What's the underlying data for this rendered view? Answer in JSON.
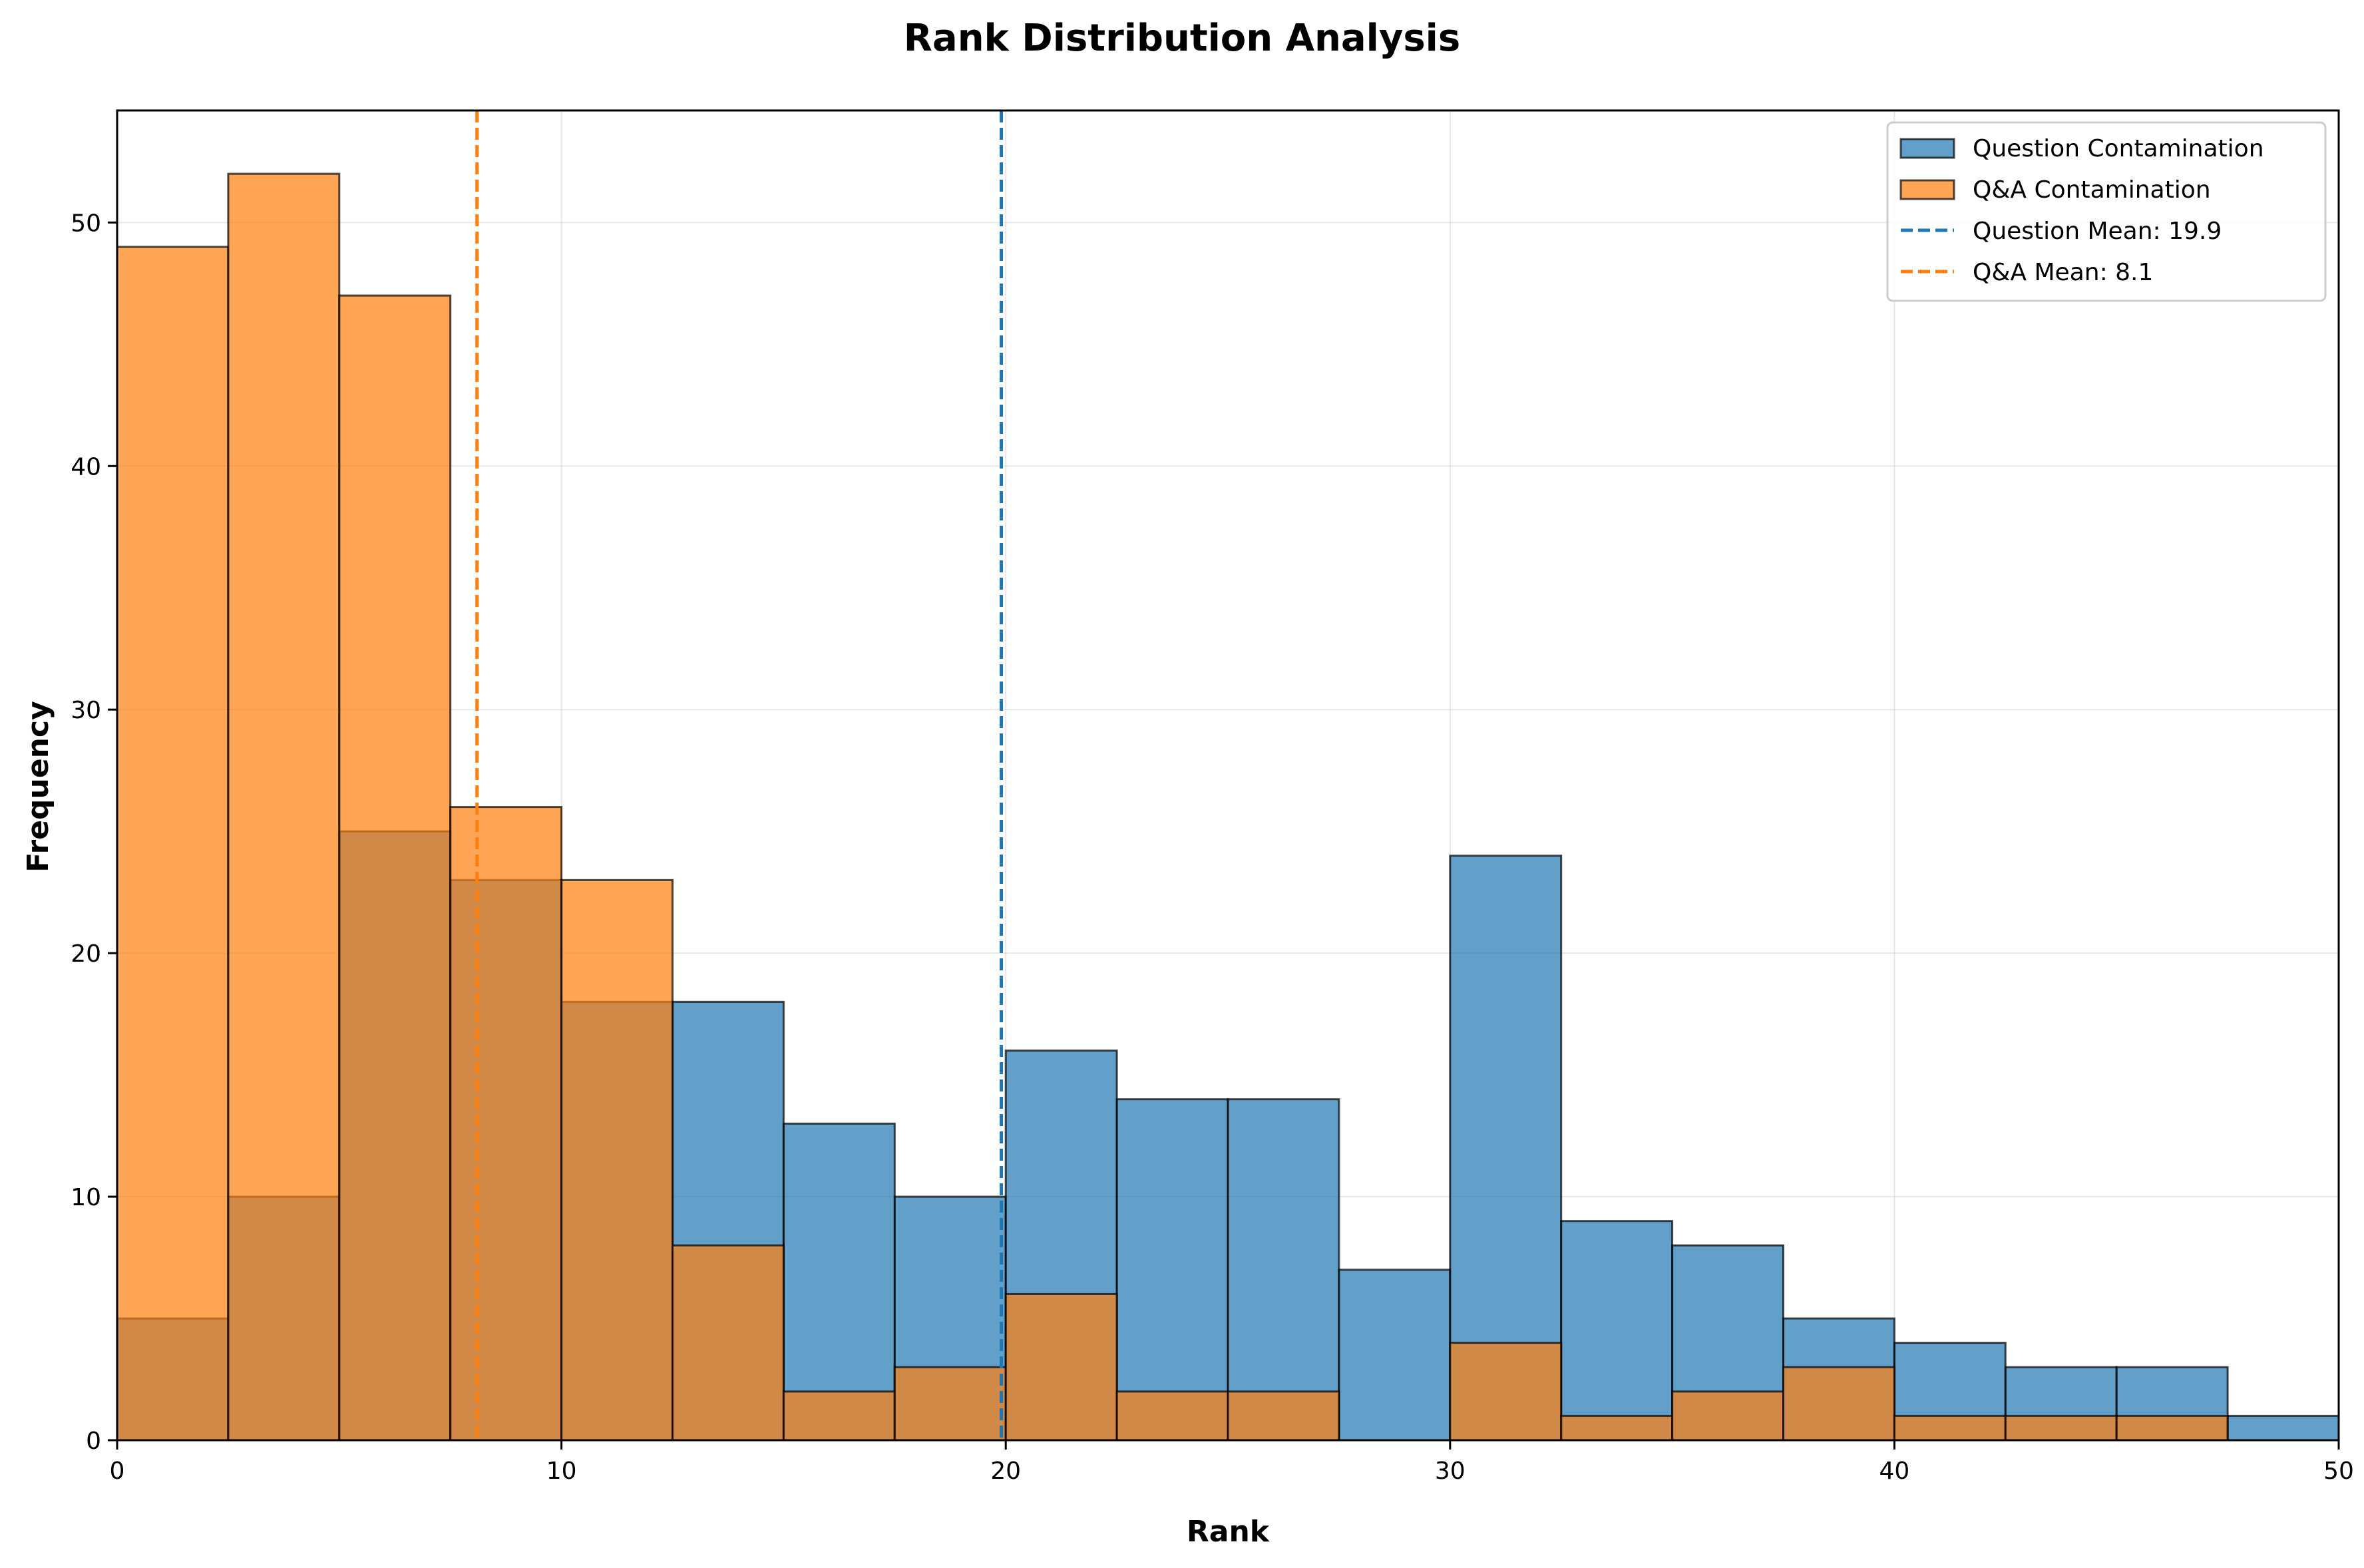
{
  "chart_data": {
    "type": "bar",
    "title": "Rank Distribution Analysis",
    "xlabel": "Rank",
    "ylabel": "Frequency",
    "xlim": [
      0,
      50
    ],
    "ylim": [
      0,
      54.6
    ],
    "xticks": [
      0,
      10,
      20,
      30,
      40,
      50
    ],
    "yticks": [
      0,
      10,
      20,
      30,
      40,
      50
    ],
    "grid": true,
    "legend_position": "top-right",
    "bin_width": 2.5,
    "bin_edges": [
      0,
      2.5,
      5,
      7.5,
      10,
      12.5,
      15,
      17.5,
      20,
      22.5,
      25,
      27.5,
      30,
      32.5,
      35,
      37.5,
      40,
      42.5,
      45,
      47.5,
      50
    ],
    "series": [
      {
        "name": "Question Contamination",
        "color": "#1f77b4",
        "values": [
          5,
          10,
          25,
          23,
          18,
          18,
          13,
          10,
          16,
          14,
          14,
          7,
          24,
          9,
          8,
          5,
          4,
          3,
          3,
          1
        ]
      },
      {
        "name": "Q&A Contamination",
        "color": "#ff7f0e",
        "values": [
          49,
          52,
          47,
          26,
          23,
          8,
          2,
          3,
          6,
          2,
          2,
          0,
          4,
          1,
          2,
          3,
          1,
          1,
          1,
          0
        ]
      }
    ],
    "mean_lines": [
      {
        "label": "Question Mean: 19.9",
        "value": 19.9,
        "color": "#1f77b4"
      },
      {
        "label": "Q&A Mean: 8.1",
        "value": 8.1,
        "color": "#ff7f0e"
      }
    ]
  }
}
